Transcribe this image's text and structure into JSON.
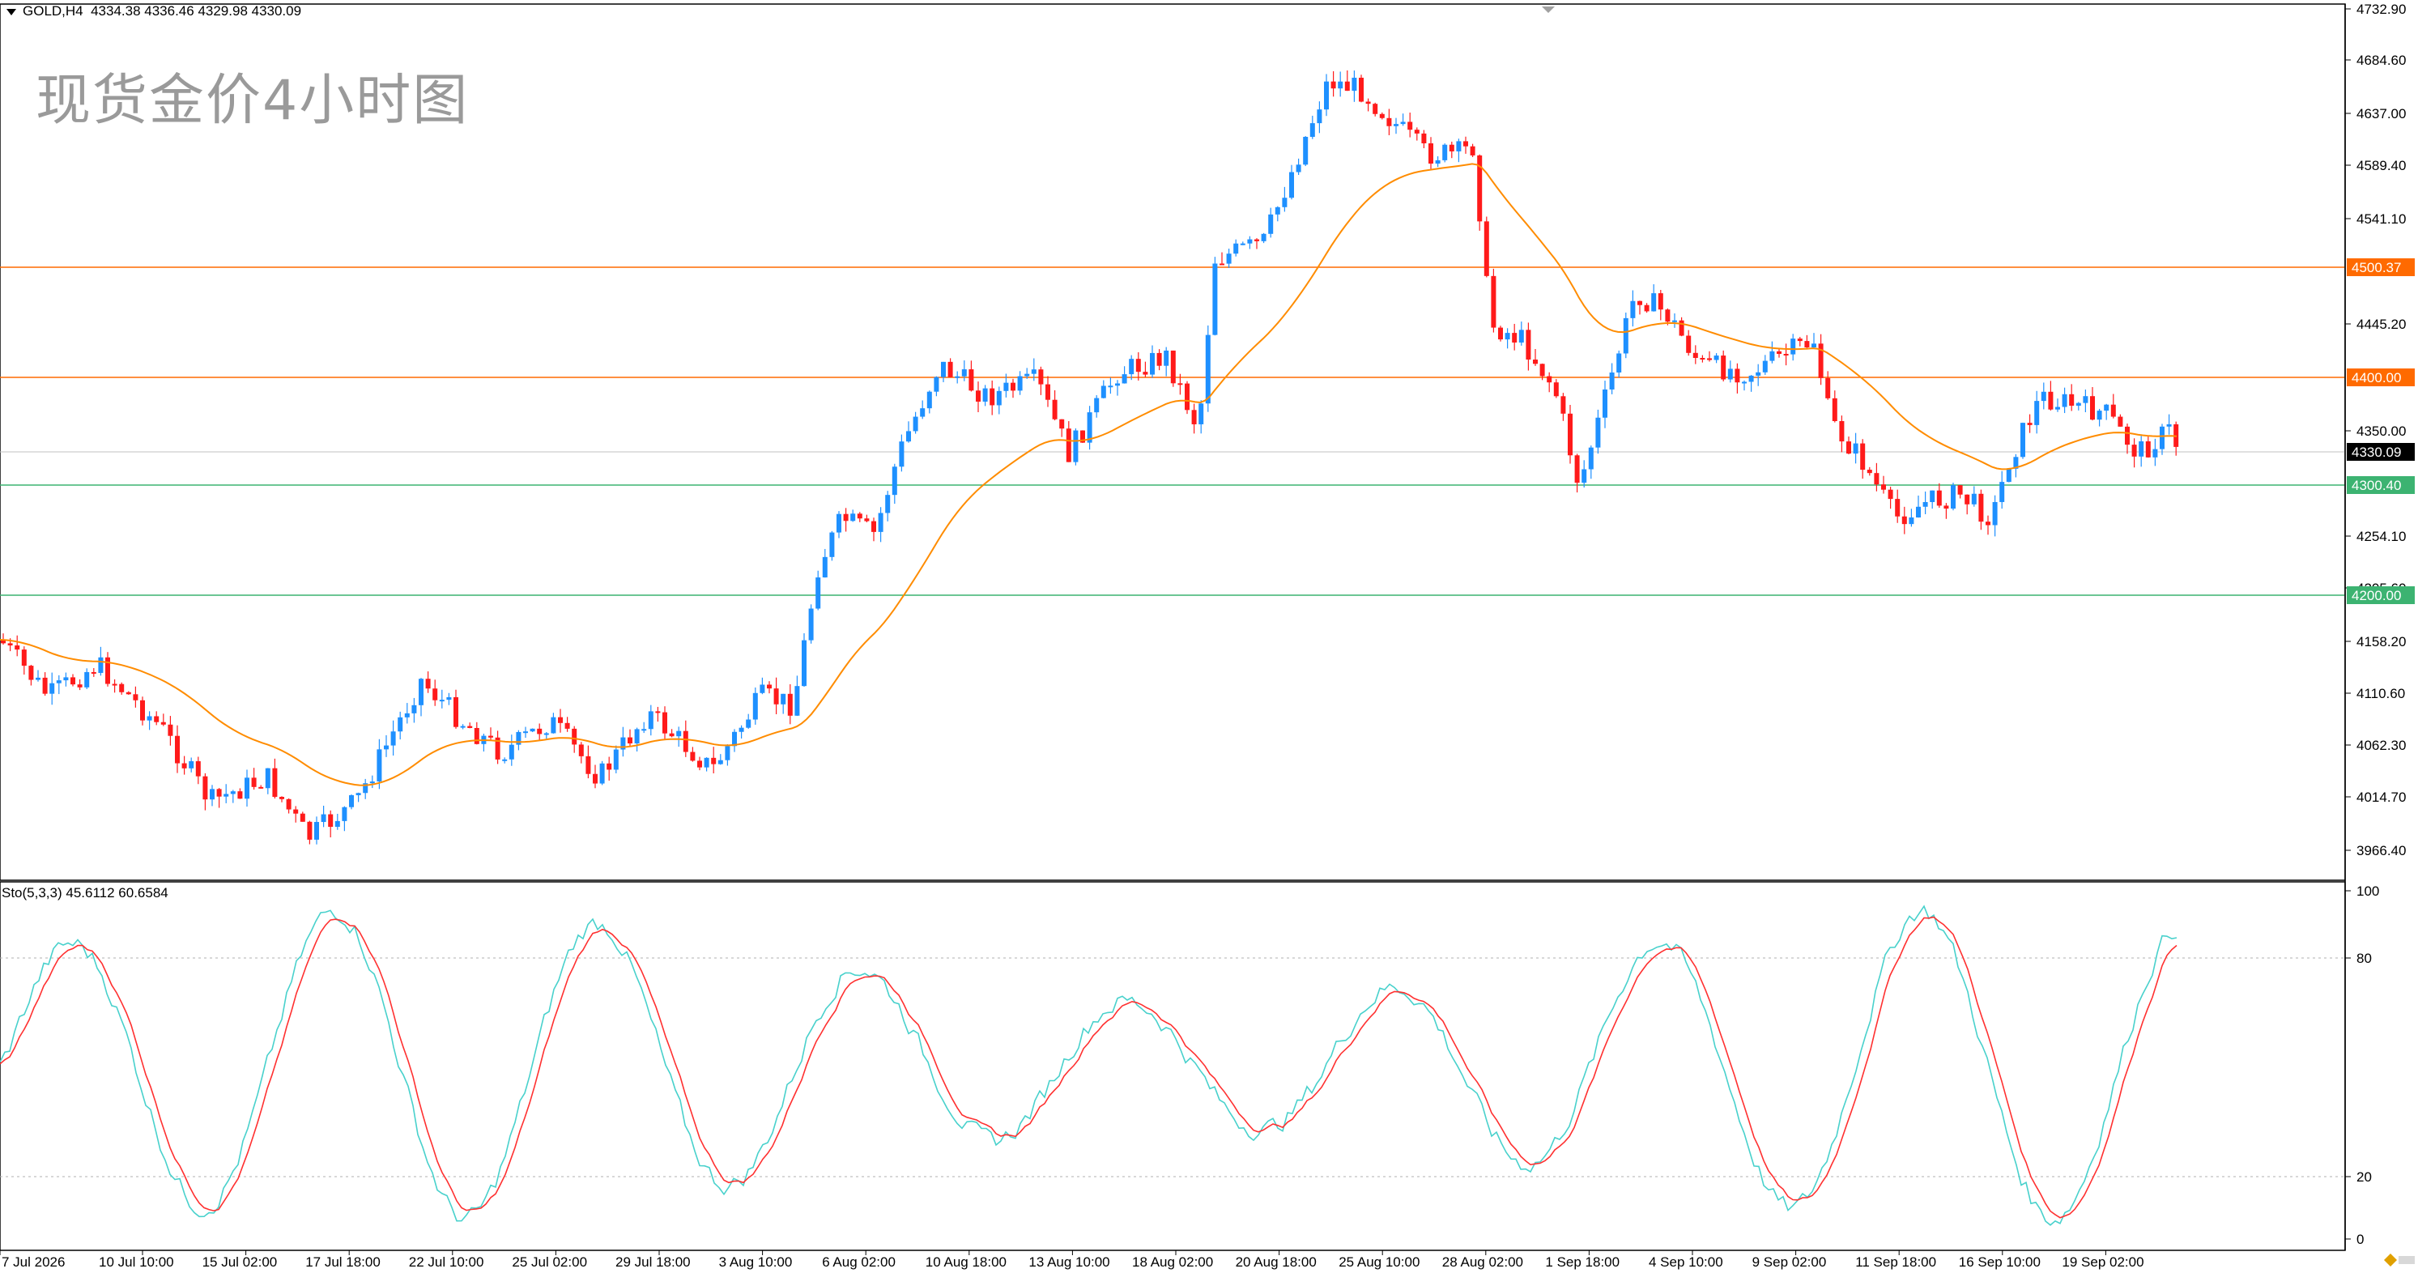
{
  "header": {
    "symbol": "GOLD,H4",
    "ohlc": "4334.38 4336.46 4329.98 4330.09"
  },
  "overlay_title": "现货金价4小时图",
  "price_axis": {
    "ticks": [
      "4732.90",
      "4684.60",
      "4637.00",
      "4589.40",
      "4541.10",
      "4445.20",
      "4350.00",
      "4254.10",
      "4205.60",
      "4158.20",
      "4110.60",
      "4062.30",
      "4014.70",
      "3966.40"
    ]
  },
  "current_price": "4330.09",
  "levels": [
    {
      "id": "r2",
      "label": "4500.37",
      "color": "#ff6a00"
    },
    {
      "id": "r1",
      "label": "4400.00",
      "color": "#ff6a00"
    },
    {
      "id": "s1",
      "label": "4300.40",
      "color": "#3cb371"
    },
    {
      "id": "s2",
      "label": "4200.00",
      "color": "#3cb371"
    }
  ],
  "stochastic": {
    "label": "Sto(5,3,3) 45.6112 60.6584",
    "ticks": [
      "100",
      "80",
      "20",
      "0"
    ]
  },
  "time_axis": [
    "7 Jul 2026",
    "10 Jul 10:00",
    "15 Jul 02:00",
    "17 Jul 18:00",
    "22 Jul 10:00",
    "25 Jul 02:00",
    "29 Jul 18:00",
    "3 Aug 10:00",
    "6 Aug 02:00",
    "10 Aug 18:00",
    "13 Aug 10:00",
    "18 Aug 02:00",
    "20 Aug 18:00",
    "25 Aug 10:00",
    "28 Aug 02:00",
    "1 Sep 18:00",
    "4 Sep 10:00",
    "9 Sep 02:00",
    "11 Sep 18:00",
    "16 Sep 10:00",
    "19 Sep 02:00"
  ],
  "colors": {
    "bull": "#1e90ff",
    "bear": "#ff1a1a",
    "ma": "#ff8c00",
    "sto_main": "#48d1cc",
    "sto_signal": "#ff3030",
    "grid": "#c0c0c0"
  }
}
